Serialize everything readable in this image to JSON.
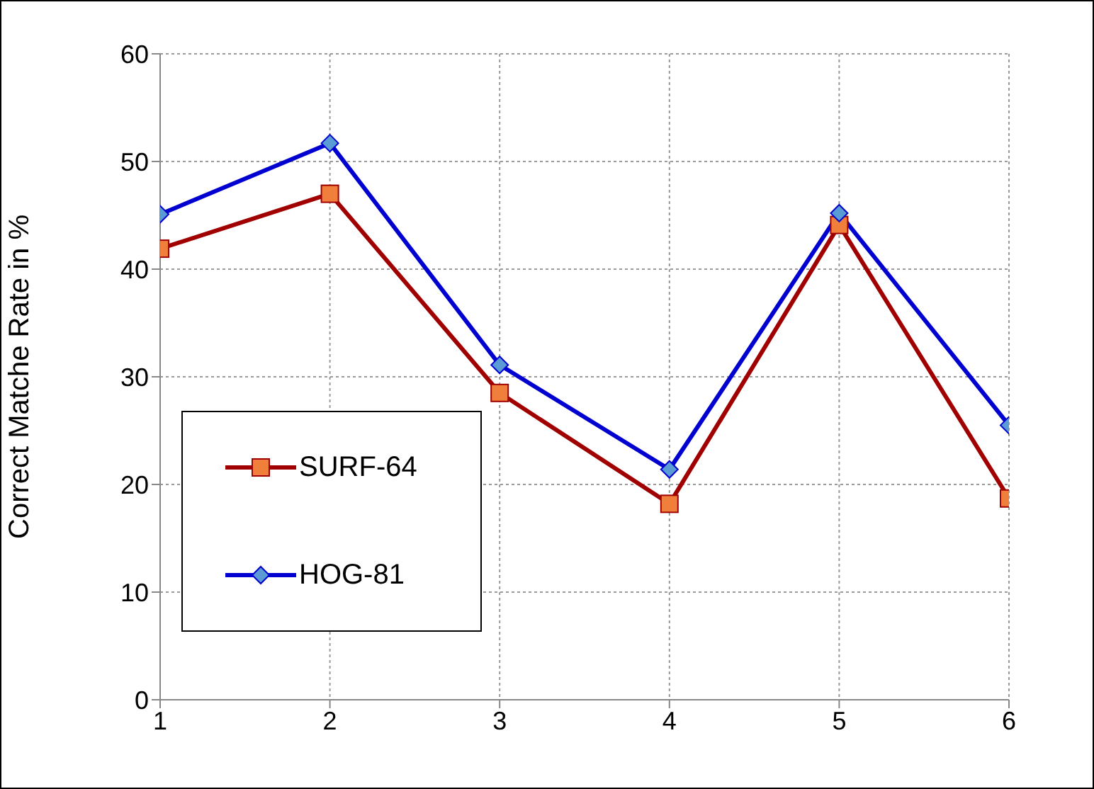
{
  "chart_data": {
    "type": "line",
    "ylabel": "Correct Matche Rate in %",
    "x": [
      1,
      2,
      3,
      4,
      5,
      6
    ],
    "xlim": [
      1,
      6
    ],
    "xticks": [
      1,
      2,
      3,
      4,
      5,
      6
    ],
    "ylim": [
      0,
      60
    ],
    "yticks": [
      0,
      10,
      20,
      30,
      40,
      50,
      60
    ],
    "grid": true,
    "legend": "bottom left",
    "line_style": "solid",
    "series": [
      {
        "name": "SURF-64",
        "color": "#a00000",
        "marker": "square",
        "values": [
          41.9,
          47.0,
          28.5,
          18.2,
          44.1,
          18.7
        ]
      },
      {
        "name": "HOG-81",
        "color": "#0000d0",
        "marker": "diamond",
        "values": [
          45.1,
          51.7,
          31.1,
          21.4,
          45.2,
          25.5
        ]
      }
    ]
  }
}
